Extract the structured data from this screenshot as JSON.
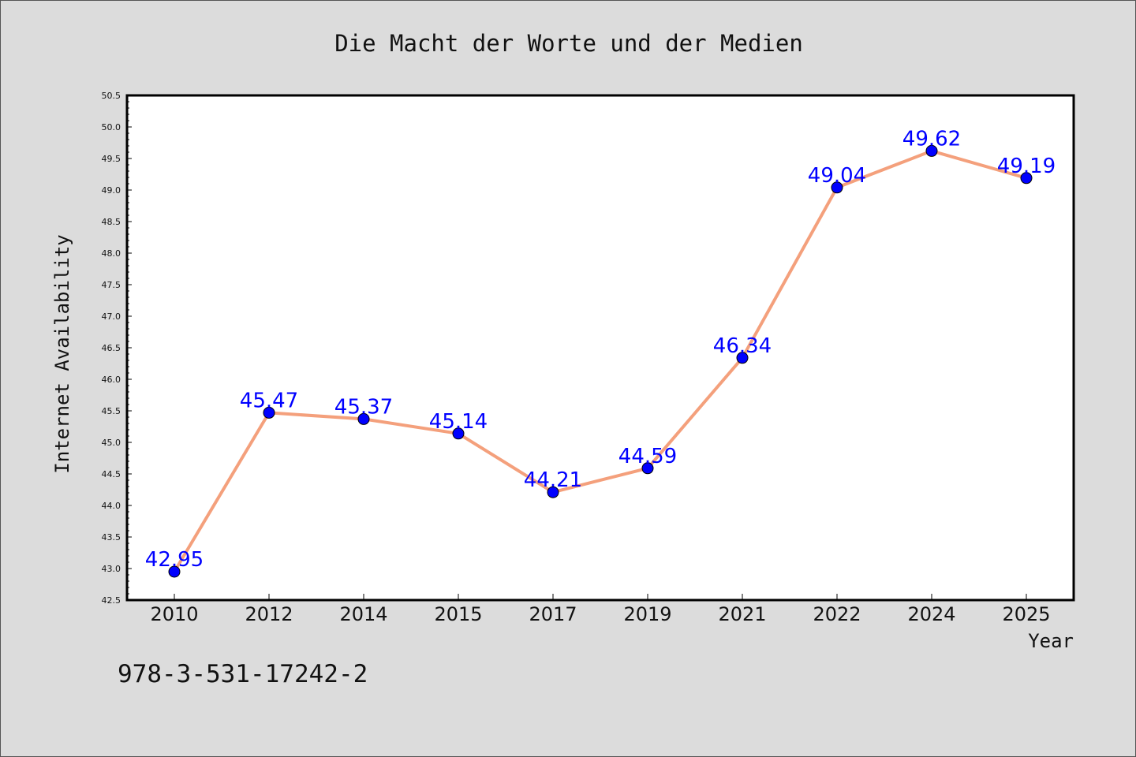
{
  "chart_data": {
    "type": "line",
    "title": "Die Macht der Worte und der Medien",
    "xlabel": "Year",
    "ylabel": "Internet Availability",
    "categories": [
      "2010",
      "2012",
      "2014",
      "2015",
      "2017",
      "2019",
      "2021",
      "2022",
      "2024",
      "2025"
    ],
    "series": [
      {
        "values": [
          42.95,
          45.47,
          45.37,
          45.14,
          44.21,
          44.59,
          46.34,
          49.04,
          49.62,
          49.19
        ],
        "labels": [
          "42.95",
          "45.47",
          "45.37",
          "45.14",
          "44.21",
          "44.59",
          "46.34",
          "49.04",
          "49.62",
          "49.19"
        ],
        "line_color": "#f4a07c",
        "marker_color": "#0000ff"
      }
    ],
    "ylim": [
      42.5,
      50.5
    ],
    "yticks": [
      "42.5",
      "43.0",
      "43.5",
      "44.0",
      "44.5",
      "45.0",
      "45.5",
      "46.0",
      "46.5",
      "47.0",
      "47.5",
      "48.0",
      "48.5",
      "49.0",
      "49.5",
      "50.0",
      "50.5"
    ],
    "grid": false,
    "legend": "none"
  },
  "annotation": {
    "code": "978-3-531-17242-2"
  },
  "colors": {
    "background": "#dcdcdc",
    "plot_background": "#ffffff",
    "line": "#f4a07c",
    "marker": "#0000ff",
    "data_label": "#0000ff"
  }
}
